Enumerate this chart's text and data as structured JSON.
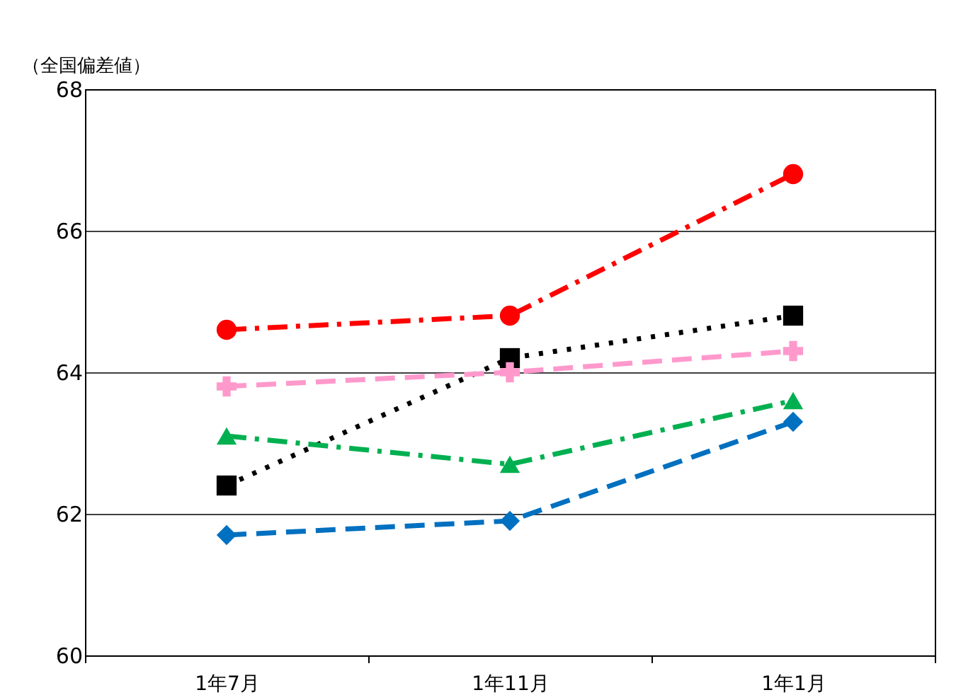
{
  "chart_data": {
    "type": "line",
    "ylabel": "（全国偏差値）",
    "categories": [
      "1年7月",
      "1年11月",
      "1年1月"
    ],
    "series": [
      {
        "color": "#ff0000",
        "values": [
          64.6,
          64.8,
          66.8
        ],
        "marker": "circle",
        "line_style": "dashed"
      },
      {
        "color": "#000000",
        "values": [
          62.4,
          64.2,
          64.8
        ],
        "marker": "square",
        "line_style": "dotted"
      },
      {
        "color": "#ff99cc",
        "values": [
          63.8,
          64.0,
          64.3
        ],
        "marker": "cross",
        "line_style": "dashed"
      },
      {
        "color": "#00b050",
        "values": [
          63.1,
          62.7,
          63.6
        ],
        "marker": "triangle",
        "line_style": "dashed"
      },
      {
        "color": "#0070c0",
        "values": [
          61.7,
          61.9,
          63.3
        ],
        "marker": "diamond",
        "line_style": "dashed"
      }
    ],
    "ylim": [
      60,
      68
    ],
    "yticks": [
      60,
      62,
      64,
      66,
      68
    ],
    "grid": "y"
  }
}
